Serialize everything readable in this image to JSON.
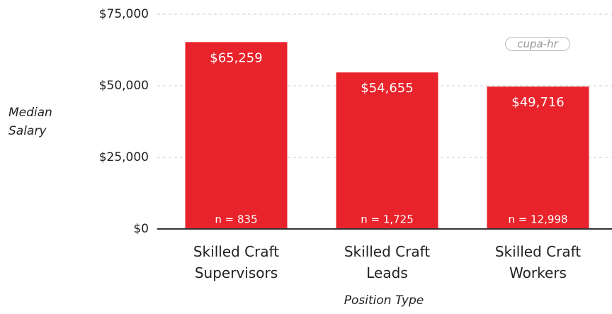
{
  "chart_data": {
    "type": "bar",
    "categories": [
      "Skilled Craft Supervisors",
      "Skilled Craft Leads",
      "Skilled Craft Workers"
    ],
    "values": [
      65259,
      54655,
      49716
    ],
    "value_labels": [
      "$65,259",
      "$54,655",
      "$49,716"
    ],
    "n_labels": [
      "n = 835",
      "n = 1,725",
      "n = 12,998"
    ],
    "color": "#e8232b",
    "ylim": [
      0,
      75000
    ],
    "yticks": [
      {
        "value": 0,
        "label": "$0"
      },
      {
        "value": 25000,
        "label": "$25,000"
      },
      {
        "value": 50000,
        "label": "$50,000"
      },
      {
        "value": 75000,
        "label": "$75,000"
      }
    ],
    "grid": true,
    "y_label": "Median Salary",
    "x_label": "Position Type",
    "logo": "cupa-hr"
  }
}
